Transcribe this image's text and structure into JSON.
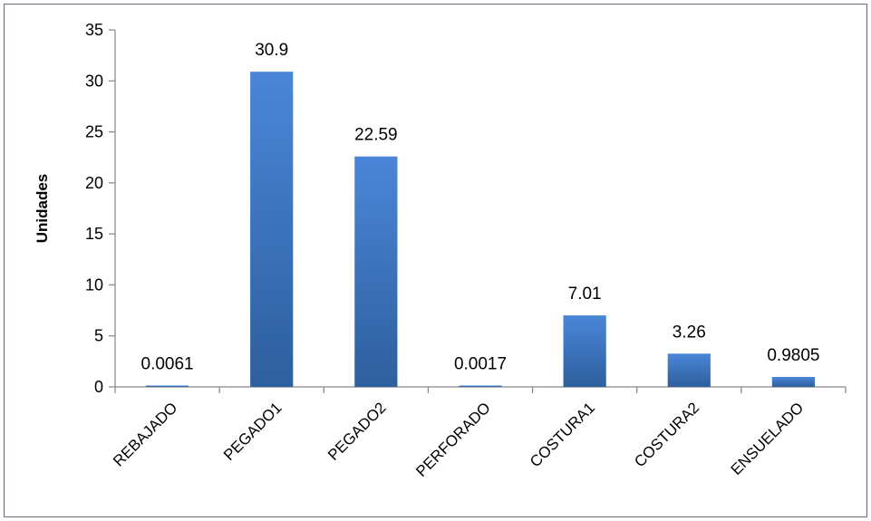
{
  "chart_data": {
    "type": "bar",
    "ylabel": "Unidades",
    "xlabel": "",
    "title": "",
    "categories": [
      "REBAJADO",
      "PEGADO1",
      "PEGADO2",
      "PERFORADO",
      "COSTURA1",
      "COSTURA2",
      "ENSUELADO"
    ],
    "values": [
      0.0061,
      30.9,
      22.59,
      0.0017,
      7.01,
      3.26,
      0.9805
    ],
    "data_labels": [
      "0.0061",
      "30.9",
      "22.59",
      "0.0017",
      "7.01",
      "3.26",
      "0.9805"
    ],
    "ylim": [
      0,
      35
    ],
    "yticks": [
      0,
      5,
      10,
      15,
      20,
      25,
      30,
      35
    ],
    "grid": false,
    "legend": "none",
    "bar_color_top": "#4a86d8",
    "bar_color_bottom": "#2e5f9e"
  }
}
